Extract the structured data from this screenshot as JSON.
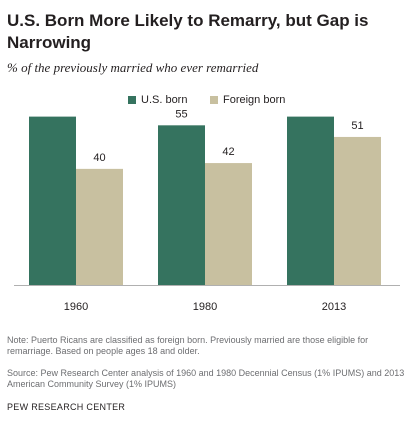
{
  "title": "U.S. Born More Likely to Remarry, but Gap is Narrowing",
  "subtitle": "% of the previously married who ever remarried",
  "legend": {
    "us_born": "U.S. born",
    "foreign_born": "Foreign born"
  },
  "colors": {
    "us_born": "#35735f",
    "foreign_born": "#c8c0a0"
  },
  "chart_data": {
    "type": "bar",
    "categories": [
      "1960",
      "1980",
      "2013"
    ],
    "series": [
      {
        "name": "U.S. born",
        "values": [
          58,
          55,
          58
        ]
      },
      {
        "name": "Foreign born",
        "values": [
          40,
          42,
          51
        ]
      }
    ],
    "ylim": [
      0,
      62
    ],
    "grid": false,
    "legend_placement": "top-center"
  },
  "note": "Note: Puerto Ricans are classified as foreign born. Previously married are those eligible for remarriage. Based on people ages 18 and older.",
  "source": "Source: Pew Research Center analysis of 1960 and 1980 Decennial Census (1% IPUMS) and 2013 American Community Survey (1% IPUMS)",
  "org": "PEW RESEARCH CENTER"
}
